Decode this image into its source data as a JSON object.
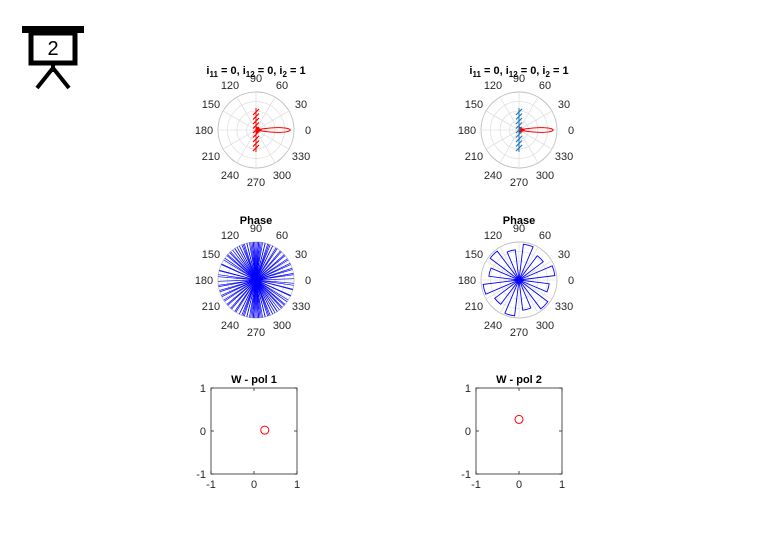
{
  "slide": {
    "number": "2",
    "icon": "presentation-board-icon"
  },
  "chart_data": [
    {
      "type": "polar-line",
      "title": {
        "prefix": "i",
        "s1": "11",
        "t1": " = 0, i",
        "s2": "12",
        "t2": " = 0, i",
        "s3": "2",
        "t3": " = 1"
      },
      "angle_ticks": [
        "0",
        "30",
        "60",
        "90",
        "120",
        "150",
        "180",
        "210",
        "240",
        "270",
        "300",
        "330"
      ],
      "rlim": [
        0,
        1
      ],
      "grid": true,
      "series": [
        {
          "color": "#ff0000",
          "style": "lobe-and-hatch",
          "lobe_length": 0.9,
          "lobe_halfwidth_deg": 11
        }
      ]
    },
    {
      "type": "polar-line",
      "title": {
        "prefix": "i",
        "s1": "11",
        "t1": " = 0, i",
        "s2": "12",
        "t2": " = 0, i",
        "s3": "2",
        "t3": " = 1"
      },
      "angle_ticks": [
        "0",
        "30",
        "60",
        "90",
        "120",
        "150",
        "180",
        "210",
        "240",
        "270",
        "300",
        "330"
      ],
      "rlim": [
        0,
        1
      ],
      "grid": true,
      "series": [
        {
          "color": "#ff0000",
          "style": "lobe",
          "lobe_length": 0.9,
          "lobe_halfwidth_deg": 11
        },
        {
          "color": "#1f77b4",
          "style": "hatch"
        }
      ]
    },
    {
      "type": "polar-phase",
      "title": "Phase",
      "angle_ticks": [
        "0",
        "30",
        "60",
        "90",
        "120",
        "150",
        "180",
        "210",
        "240",
        "270",
        "300",
        "330"
      ],
      "color": "#0000ff",
      "rlim": [
        0,
        1
      ],
      "angles_deg": [
        72,
        76,
        80,
        84,
        86,
        88,
        92,
        94,
        96,
        100,
        104,
        108,
        112,
        116,
        120,
        124,
        128,
        134,
        138,
        145,
        155,
        165,
        175,
        188,
        196,
        204,
        212,
        220,
        228,
        236,
        244,
        250,
        256,
        262,
        266,
        270,
        274,
        278,
        284,
        290,
        296,
        304,
        312,
        320,
        328,
        336,
        346,
        352,
        2,
        10,
        18,
        26,
        34,
        42,
        50,
        58,
        64,
        68
      ]
    },
    {
      "type": "polar-phase",
      "title": "Phase",
      "angle_ticks": [
        "0",
        "30",
        "60",
        "90",
        "120",
        "150",
        "180",
        "210",
        "240",
        "270",
        "300",
        "330"
      ],
      "color": "#0000ff",
      "rlim": [
        0,
        1
      ],
      "angles_deg": [
        15,
        45,
        75,
        105,
        135,
        165,
        195,
        225,
        255,
        285,
        315,
        345
      ]
    },
    {
      "type": "scatter",
      "title": "W - pol 1",
      "xlim": [
        -1,
        1
      ],
      "ylim": [
        -1,
        1
      ],
      "xticks": [
        "-1",
        "0",
        "1"
      ],
      "yticks": [
        "-1",
        "0",
        "1"
      ],
      "marker": "circle",
      "color": "#ff0000",
      "points": [
        {
          "x": 0.25,
          "y": 0.02
        }
      ]
    },
    {
      "type": "scatter",
      "title": "W - pol 2",
      "xlim": [
        -1,
        1
      ],
      "ylim": [
        -1,
        1
      ],
      "xticks": [
        "-1",
        "0",
        "1"
      ],
      "yticks": [
        "-1",
        "0",
        "1"
      ],
      "marker": "circle",
      "color": "#ff0000",
      "points": [
        {
          "x": 0.0,
          "y": 0.27
        }
      ]
    }
  ]
}
